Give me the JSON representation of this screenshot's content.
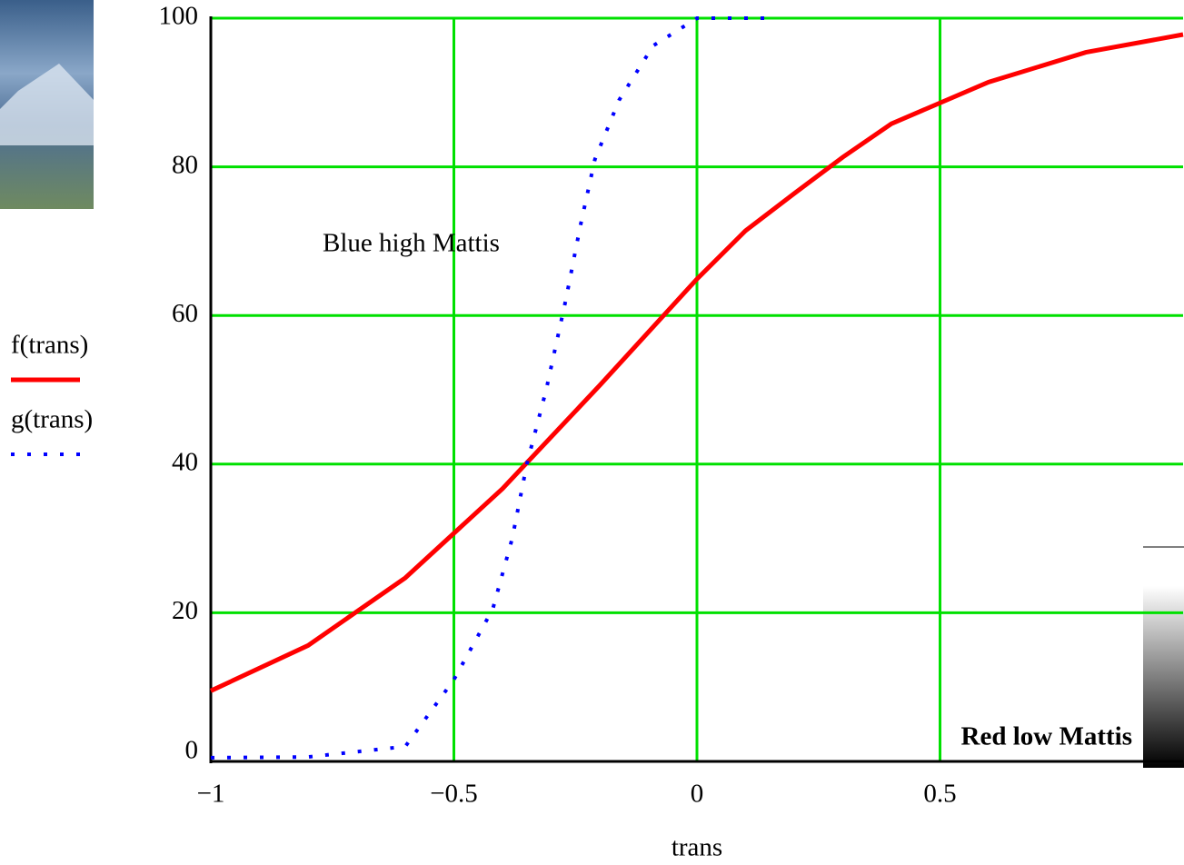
{
  "chart_data": {
    "type": "line",
    "x_label": "trans",
    "xlim": [
      -1,
      1
    ],
    "ylim": [
      0,
      100
    ],
    "xticks": [
      {
        "value": -1,
        "label": "−1"
      },
      {
        "value": -0.5,
        "label": "−0.5"
      },
      0,
      0.5
    ],
    "yticks": [
      0,
      20,
      40,
      60,
      80,
      100
    ],
    "grid": true,
    "grid_color": "#00e000",
    "series": [
      {
        "name": "f(trans)",
        "color": "#ff0000",
        "style": "solid",
        "x": [
          -1,
          -0.8,
          -0.6,
          -0.4,
          -0.2,
          0,
          0.1,
          0.2,
          0.3,
          0.4,
          0.6,
          0.8,
          1
        ],
        "values": [
          9.5,
          15.6,
          24.7,
          36.7,
          50.6,
          64.9,
          71.4,
          76.4,
          81.3,
          85.8,
          91.4,
          95.4,
          97.8
        ]
      },
      {
        "name": "g(trans)",
        "color": "#0000ff",
        "style": "dotted",
        "x": [
          -1,
          -0.8,
          -0.6,
          -0.5,
          -0.42,
          -0.38,
          -0.35,
          -0.31,
          -0.27,
          -0.24,
          -0.21,
          -0.16,
          -0.09,
          0,
          0.15
        ],
        "values": [
          0.5,
          0.6,
          2,
          11,
          20.5,
          30,
          40,
          50,
          62,
          72,
          81,
          89,
          96.3,
          100,
          100
        ]
      }
    ],
    "annotations": [
      {
        "text": "Blue high Mattis",
        "color": "#1a5fd0"
      },
      {
        "text": "Red low Mattis",
        "color": "#ff3300"
      }
    ]
  }
}
